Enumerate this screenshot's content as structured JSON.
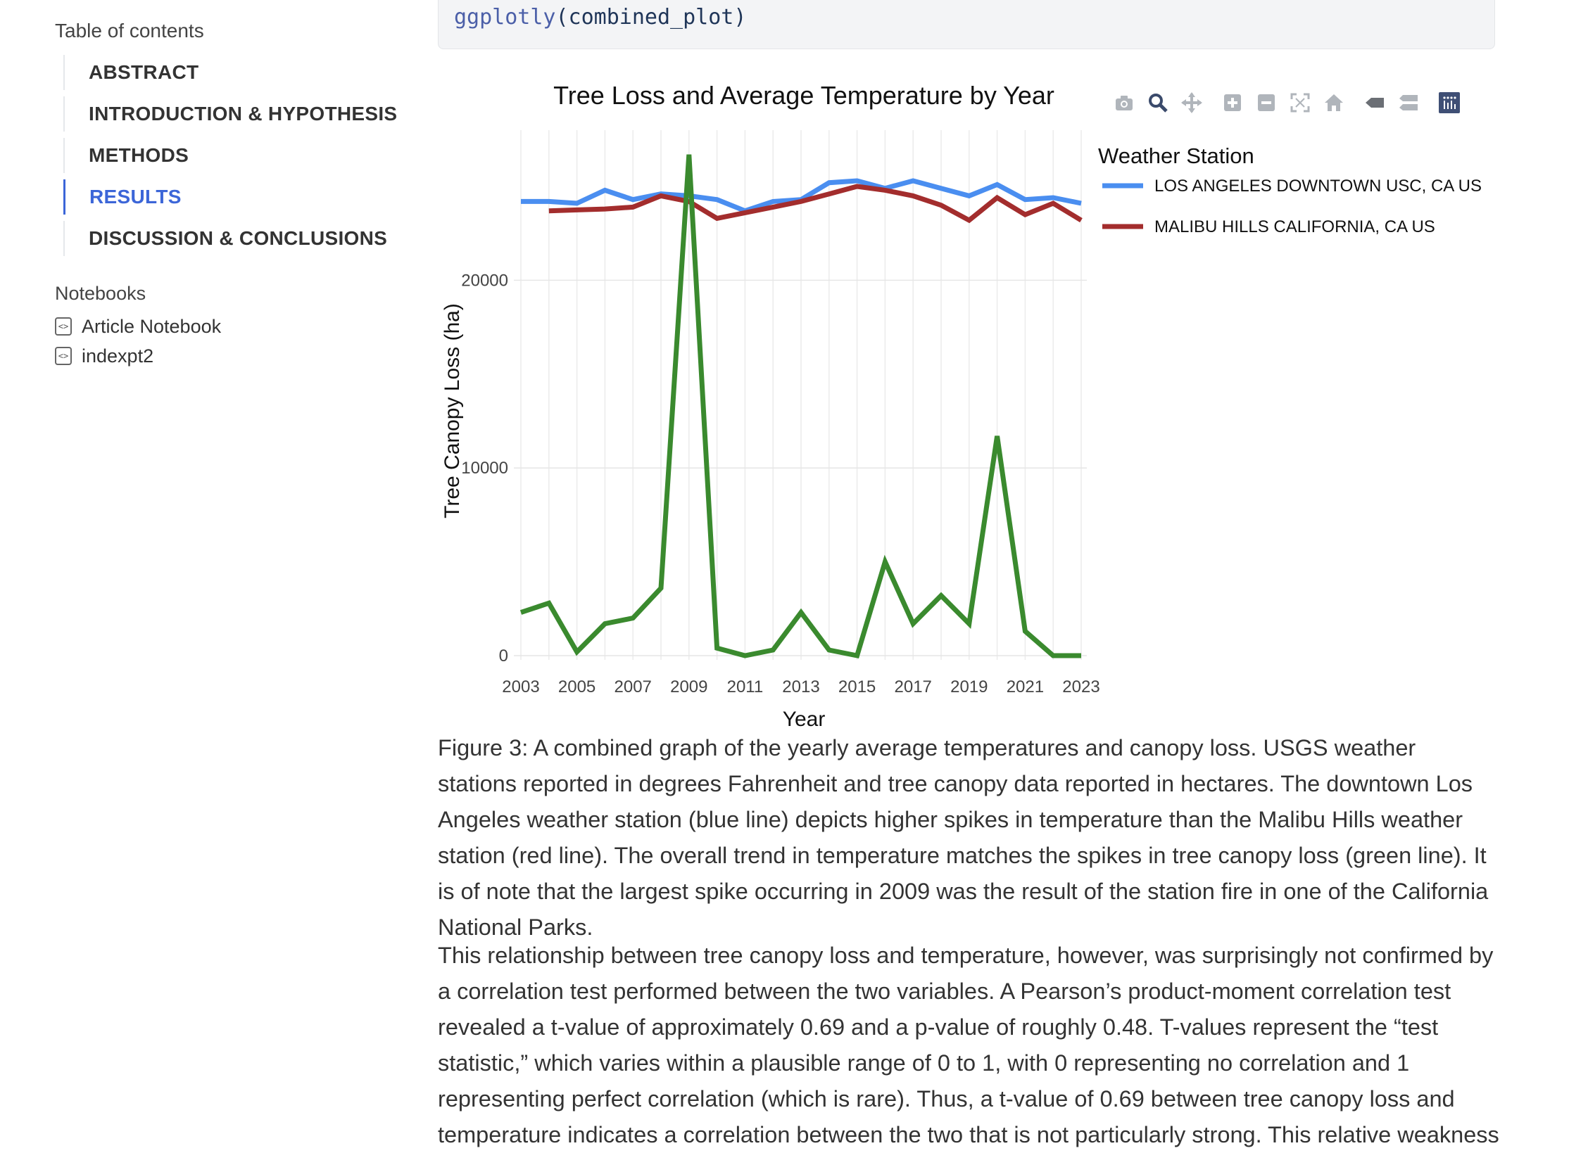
{
  "sidebar": {
    "toc_title": "Table of contents",
    "toc_items": [
      {
        "label": "ABSTRACT"
      },
      {
        "label": "INTRODUCTION & HYPOTHESIS"
      },
      {
        "label": "METHODS"
      },
      {
        "label": "RESULTS"
      },
      {
        "label": "DISCUSSION & CONCLUSIONS"
      }
    ],
    "notebooks_title": "Notebooks",
    "notebooks": [
      {
        "label": "Article Notebook"
      },
      {
        "label": "indexpt2"
      }
    ]
  },
  "code": {
    "fn": "ggplotly",
    "rest": "(combined_plot)"
  },
  "modebar_icons": [
    "camera-icon",
    "zoom-icon",
    "pan-icon",
    "zoom-in-icon",
    "zoom-out-icon",
    "autoscale-icon",
    "reset-axes-icon",
    "hover-closest-icon",
    "hover-compare-icon",
    "plotly-logo-icon"
  ],
  "chart_data": {
    "type": "line",
    "title": "Tree Loss and Average Temperature by Year",
    "xlabel": "Year",
    "ylabel": "Tree Canopy Loss (ha)",
    "xlim": [
      2003,
      2023
    ],
    "ylim": [
      0,
      28000
    ],
    "x_ticks": [
      "2003",
      "2005",
      "2007",
      "2009",
      "2011",
      "2013",
      "2015",
      "2017",
      "2019",
      "2021",
      "2023"
    ],
    "y_ticks": [
      "0",
      "10000",
      "20000"
    ],
    "y_tick_values": [
      0,
      10000,
      20000
    ],
    "grid": true,
    "legend_title": "Weather Station",
    "legend_position": "right",
    "series": [
      {
        "name": "LOS ANGELES DOWNTOWN USC, CA US",
        "color": "#4a8ef0",
        "x": [
          2003,
          2004,
          2005,
          2006,
          2007,
          2008,
          2009,
          2010,
          2011,
          2012,
          2013,
          2014,
          2015,
          2016,
          2017,
          2018,
          2019,
          2020,
          2021,
          2022,
          2023
        ],
        "values": [
          24200,
          24200,
          24100,
          24800,
          24300,
          24600,
          24500,
          24300,
          23700,
          24200,
          24300,
          25200,
          25300,
          24900,
          25300,
          24900,
          24500,
          25100,
          24300,
          24400,
          24100
        ]
      },
      {
        "name": "MALIBU HILLS CALIFORNIA, CA US",
        "color": "#a32d2d",
        "x": [
          2004,
          2005,
          2006,
          2007,
          2008,
          2009,
          2010,
          2011,
          2012,
          2013,
          2014,
          2015,
          2016,
          2017,
          2018,
          2019,
          2020,
          2021,
          2022,
          2023
        ],
        "values": [
          23700,
          23750,
          23800,
          23900,
          24500,
          24200,
          23300,
          23600,
          23900,
          24200,
          24600,
          25000,
          24800,
          24500,
          24000,
          23200,
          24400,
          23500,
          24100,
          23200
        ]
      },
      {
        "color": "#3a8a2e",
        "x": [
          2003,
          2004,
          2005,
          2006,
          2007,
          2008,
          2009,
          2010,
          2011,
          2012,
          2013,
          2014,
          2015,
          2016,
          2017,
          2018,
          2019,
          2020,
          2021,
          2022,
          2023
        ],
        "values": [
          2300,
          2800,
          200,
          1700,
          2000,
          3600,
          26700,
          400,
          0,
          300,
          2300,
          300,
          0,
          5000,
          1700,
          3200,
          1700,
          11700,
          1300,
          0,
          0
        ]
      }
    ]
  },
  "caption": "Figure 3: A combined graph of the yearly average temperatures and canopy loss. USGS weather stations reported in degrees Fahrenheit and tree canopy data reported in hectares. The downtown Los Angeles weather station (blue line) depicts higher spikes in temperature than the Malibu Hills weather station (red line). The overall trend in temperature matches the spikes in tree canopy loss (green line). It is of note that the largest spike occurring in 2009 was the result of the station fire in one of the California National Parks.",
  "paragraph": "This relationship between tree canopy loss and temperature, however, was surprisingly not confirmed by a correlation test performed between the two variables. A Pearson’s product-moment correlation test revealed a t-value of approximately 0.69 and a p-value of roughly 0.48. T-values represent the “test statistic,” which varies within a plausible range of 0 to 1, with 0 representing no correlation and 1 representing perfect correlation (which is rare). Thus, a t-value of 0.69 between tree canopy loss and temperature indicates a correlation between the two that is not particularly strong. This relative weakness"
}
